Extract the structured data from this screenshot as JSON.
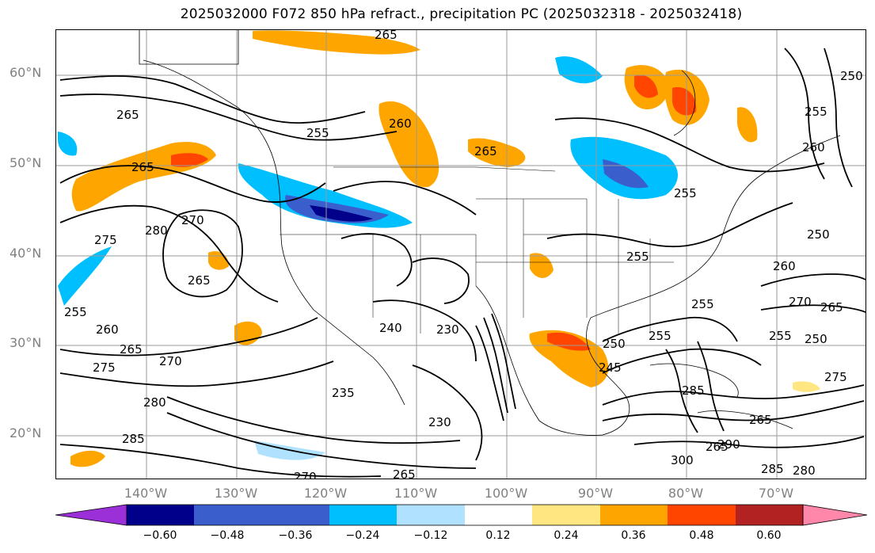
{
  "title": "2025032000 F072 850 hPa refract., precipitation PC (2025032318 - 2025032418)",
  "lat_labels": [
    "60°N",
    "50°N",
    "40°N",
    "30°N",
    "20°N"
  ],
  "lon_labels": [
    "140°W",
    "130°W",
    "120°W",
    "110°W",
    "100°W",
    "90°W",
    "80°W",
    "70°W"
  ],
  "colorbar": {
    "ticks": [
      "−0.60",
      "−0.48",
      "−0.36",
      "−0.24",
      "−0.12",
      "0.12",
      "0.24",
      "0.36",
      "0.48",
      "0.60"
    ],
    "colors": [
      "#9b30d9",
      "#00008b",
      "#3a5fcd",
      "#00bfff",
      "#b0e2ff",
      "#ffffff",
      "#ffe680",
      "#ffa500",
      "#ff4500",
      "#b22222",
      "#ff88aa"
    ]
  },
  "contour_labels": [
    "265",
    "265",
    "255",
    "260",
    "265",
    "265",
    "275",
    "280",
    "270",
    "265",
    "255",
    "260",
    "265",
    "255",
    "250",
    "260",
    "255",
    "270",
    "265",
    "255",
    "250",
    "260",
    "275",
    "270",
    "280",
    "285",
    "270",
    "265",
    "235",
    "230",
    "230",
    "240",
    "250",
    "245",
    "255",
    "255",
    "285",
    "265",
    "300",
    "265",
    "285",
    "290",
    "280",
    "275",
    "255",
    "250"
  ],
  "palette": {
    "contour": "#000000",
    "coast": "#000000",
    "grid": "#9a9a9a",
    "tick_label": "#808080"
  }
}
